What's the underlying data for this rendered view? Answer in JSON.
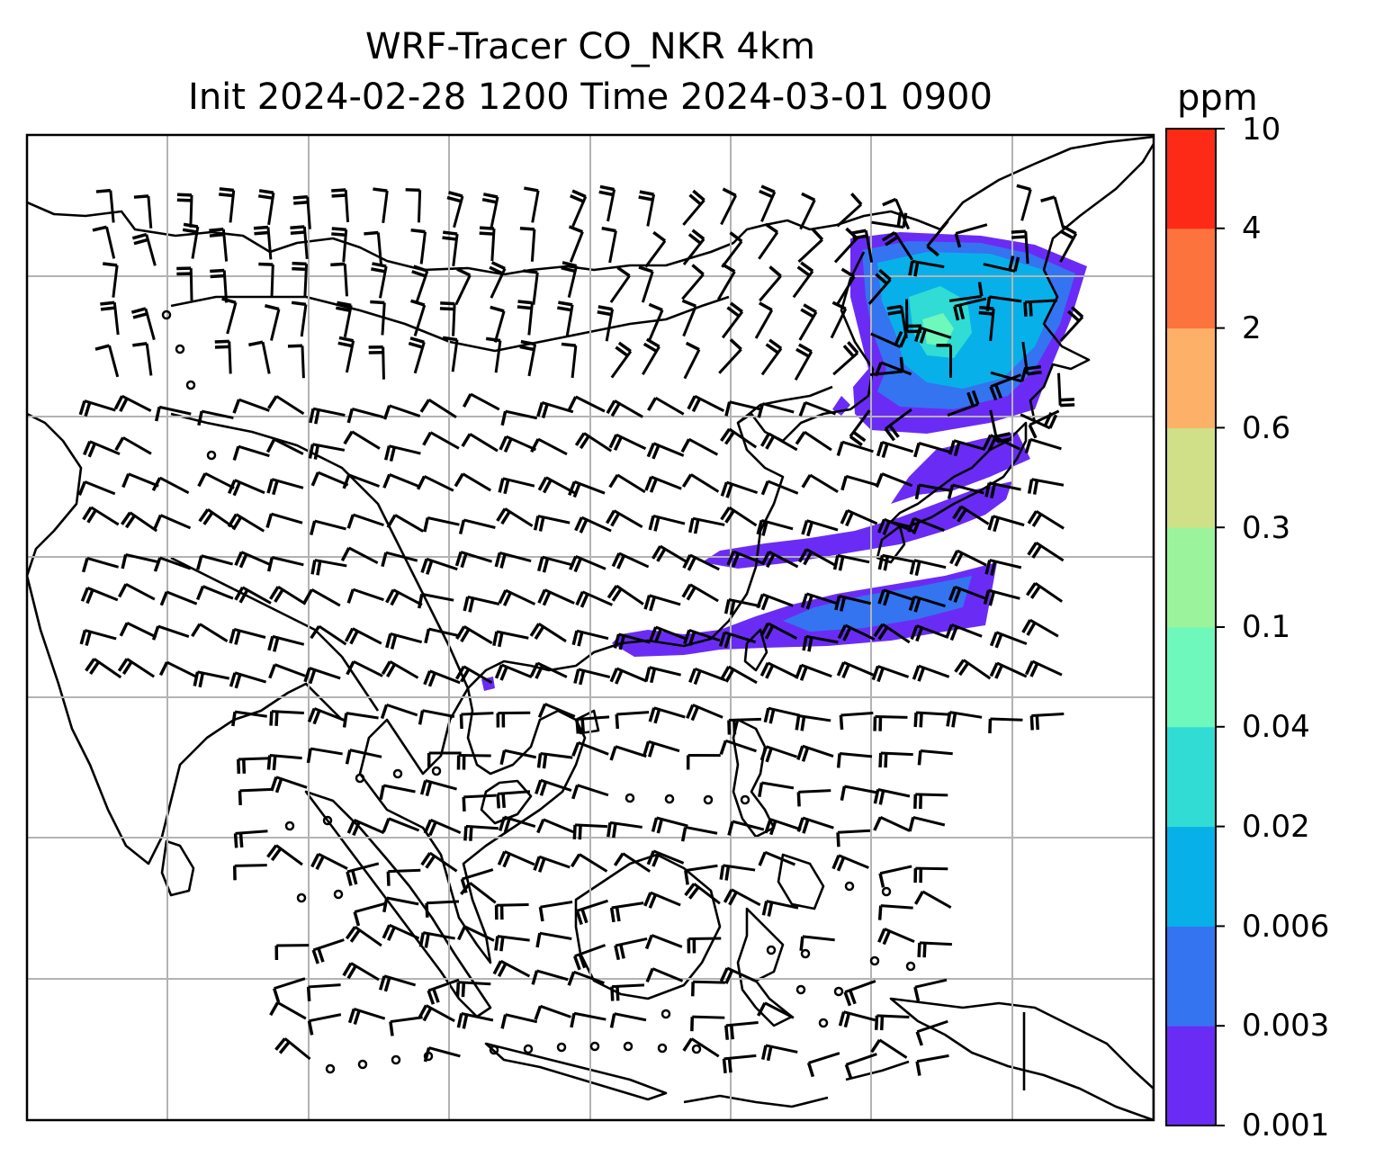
{
  "title": {
    "line1": "WRF-Tracer CO_NKR 4km",
    "line2": "Init 2024-02-28 1200 Time 2024-03-01 0900"
  },
  "colorbar": {
    "unit": "ppm",
    "ticks": [
      "0.001",
      "0.003",
      "0.006",
      "0.02",
      "0.04",
      "0.1",
      "0.3",
      "0.6",
      "2",
      "4",
      "10"
    ],
    "colors": [
      "#6a2cf5",
      "#3474f0",
      "#08b0ea",
      "#30dcd4",
      "#6ef8bc",
      "#9bf49b",
      "#cfe088",
      "#fdb067",
      "#fd733d",
      "#fd2a17"
    ]
  },
  "plume": {
    "colors": {
      "outer": "#6a2cf5",
      "mid": "#3474f0",
      "inner": "#08b0ea",
      "core": "#30dcd4",
      "peak": "#6ef8bc"
    }
  },
  "wind_barbs": {
    "color": "#000000"
  }
}
